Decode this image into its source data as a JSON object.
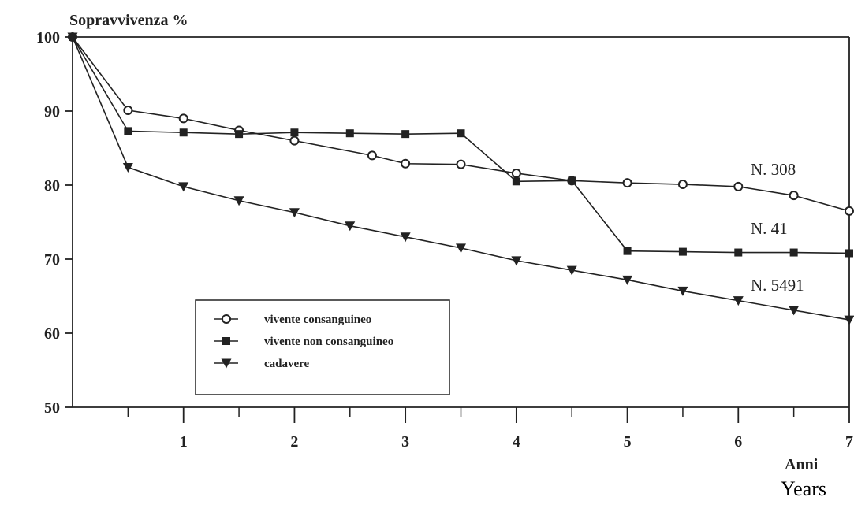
{
  "chart_data": {
    "type": "line",
    "ylabel": "Sopravvivenza %",
    "xlabel": "Anni",
    "ylim": [
      50,
      100
    ],
    "xlim": [
      0,
      7
    ],
    "yticks": [
      50,
      60,
      70,
      80,
      90,
      100
    ],
    "xticks": [
      1,
      2,
      3,
      4,
      5,
      6,
      7
    ],
    "minor_xticks": [
      0.5,
      1.5,
      2.5,
      3.5,
      4.5,
      5.5,
      6.5
    ],
    "grid": false,
    "legend_position": "lower-left",
    "series": [
      {
        "name": "vivente consanguineo",
        "marker": "open-circle",
        "annotation": "N. 308",
        "x": [
          0,
          0.5,
          1,
          1.5,
          2,
          2.7,
          3,
          3.5,
          4,
          4.5,
          5,
          5.5,
          6,
          6.5,
          7
        ],
        "y": [
          100,
          90.1,
          89.0,
          87.4,
          86.0,
          84.0,
          82.9,
          82.8,
          81.6,
          80.6,
          80.3,
          80.1,
          79.8,
          78.6,
          76.5
        ]
      },
      {
        "name": "vivente non consanguineo",
        "marker": "filled-square",
        "annotation": "N. 41",
        "x": [
          0,
          0.5,
          1,
          1.5,
          2,
          2.5,
          3,
          3.5,
          4,
          4.5,
          5,
          5.5,
          6,
          6.5,
          7
        ],
        "y": [
          100,
          87.3,
          87.1,
          86.9,
          87.1,
          87.0,
          86.9,
          87.0,
          80.5,
          80.6,
          71.1,
          71.0,
          70.9,
          70.9,
          70.8
        ]
      },
      {
        "name": "cadavere",
        "marker": "filled-triangle-down",
        "annotation": "N. 5491",
        "x": [
          0,
          0.5,
          1,
          1.5,
          2,
          2.5,
          3,
          3.5,
          4,
          4.5,
          5,
          5.5,
          6,
          6.5,
          7
        ],
        "y": [
          100,
          82.4,
          79.8,
          77.9,
          76.3,
          74.5,
          73.0,
          71.5,
          69.8,
          68.5,
          67.2,
          65.7,
          64.4,
          63.1,
          61.8
        ]
      }
    ]
  },
  "extra_label": "Years"
}
